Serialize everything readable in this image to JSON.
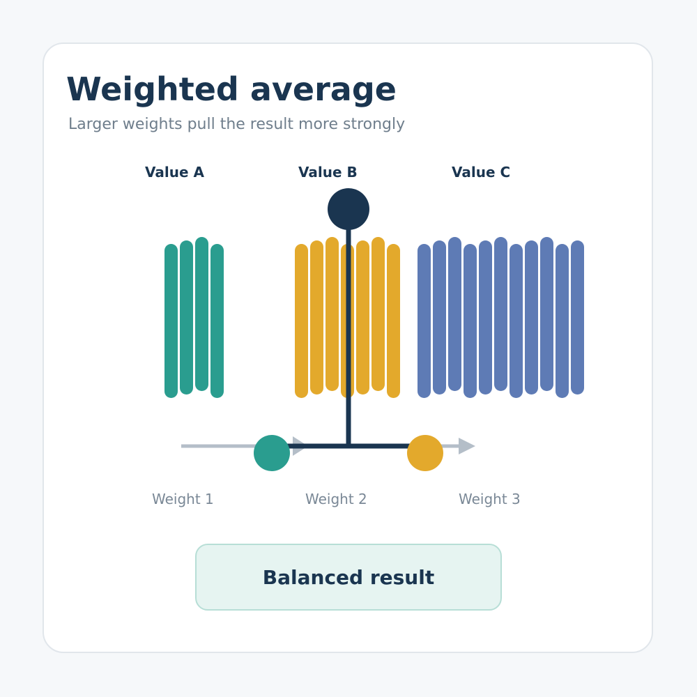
{
  "header": {
    "title": "Weighted average",
    "subtitle": "Larger weights pull the result more strongly"
  },
  "values": [
    {
      "label": "Value A",
      "bar_count": 4,
      "color": "#2a9d8f"
    },
    {
      "label": "Value B",
      "bar_count": 7,
      "color": "#e3a92c"
    },
    {
      "label": "Value C",
      "bar_count": 11,
      "color": "#5e7bb5"
    }
  ],
  "weights": [
    "Weight 1",
    "Weight 2",
    "Weight 3"
  ],
  "result": {
    "label": "Balanced result"
  },
  "colors": {
    "accent_dark": "#1a3550",
    "arrow": "#b4bec8",
    "result_bg": "#e6f4f1",
    "result_border": "#b7ded6"
  }
}
